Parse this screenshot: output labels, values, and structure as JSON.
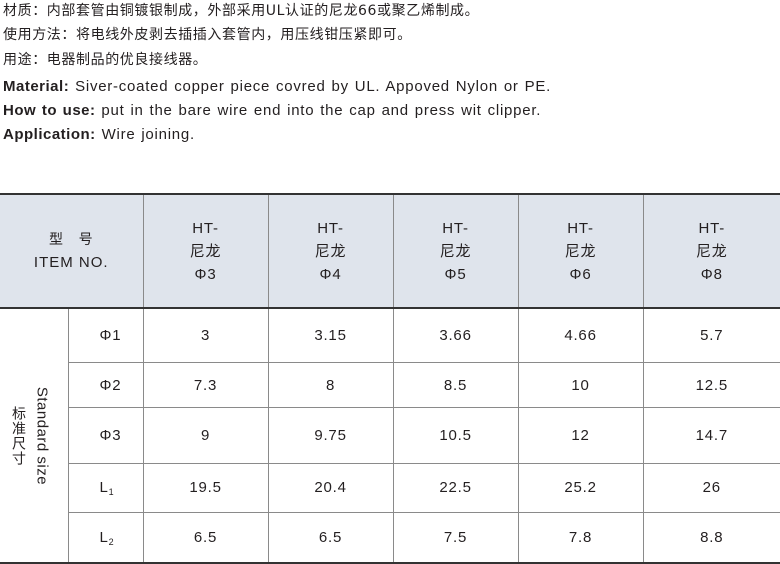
{
  "description_cn": [
    "材质：内部套管由铜镀银制成，外部采用UL认证的尼龙66或聚乙烯制成。",
    "使用方法：将电线外皮剥去插插入套管内，用压线钳压紧即可。",
    "用途：电器制品的优良接线器。"
  ],
  "description_en": [
    {
      "label": "Material:",
      "text": "Siver-coated copper piece covred by UL. Appoved Nylon or PE."
    },
    {
      "label": "How to use:",
      "text": "put in the bare wire end into the cap and press wit clipper."
    },
    {
      "label": "Application:",
      "text": "Wire joining."
    }
  ],
  "table": {
    "header": {
      "cn": "型　号",
      "en": "ITEM NO."
    },
    "side_label": {
      "en": "Standard size",
      "cn": "标准尺寸"
    },
    "columns": [
      {
        "l1": "HT-",
        "l2": "尼龙",
        "l3": "Φ3"
      },
      {
        "l1": "HT-",
        "l2": "尼龙",
        "l3": "Φ4"
      },
      {
        "l1": "HT-",
        "l2": "尼龙",
        "l3": "Φ5"
      },
      {
        "l1": "HT-",
        "l2": "尼龙",
        "l3": "Φ6"
      },
      {
        "l1": "HT-",
        "l2": "尼龙",
        "l3": "Φ8"
      }
    ],
    "rows": [
      {
        "label": "Φ1",
        "sub": "",
        "values": [
          "3",
          "3.15",
          "3.66",
          "4.66",
          "5.7"
        ]
      },
      {
        "label": "Φ2",
        "sub": "",
        "values": [
          "7.3",
          "8",
          "8.5",
          "10",
          "12.5"
        ]
      },
      {
        "label": "Φ3",
        "sub": "",
        "values": [
          "9",
          "9.75",
          "10.5",
          "12",
          "14.7"
        ]
      },
      {
        "label": "L",
        "sub": "1",
        "values": [
          "19.5",
          "20.4",
          "22.5",
          "25.2",
          "26"
        ]
      },
      {
        "label": "L",
        "sub": "2",
        "values": [
          "6.5",
          "6.5",
          "7.5",
          "7.8",
          "8.8"
        ]
      }
    ]
  },
  "colors": {
    "header_bg": "#dfe4ec",
    "text": "#231f20",
    "grid": "#8a8a8a"
  }
}
